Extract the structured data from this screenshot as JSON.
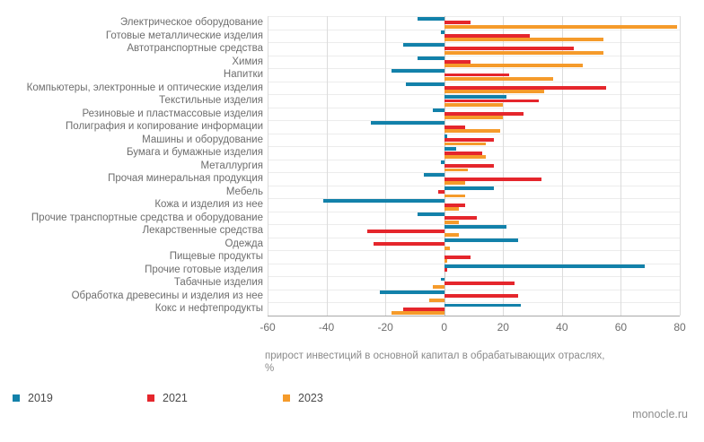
{
  "chart_data": {
    "type": "bar",
    "orientation": "horizontal",
    "title": "",
    "xlabel_line1": "прирост инвестиций в основной капитал в обрабатывающих отраслях,",
    "xlabel_line2": "%",
    "xlim": [
      -60,
      80
    ],
    "xticks": [
      -60,
      -40,
      -20,
      0,
      20,
      40,
      60,
      80
    ],
    "grid": true,
    "legend_position": "bottom",
    "categories": [
      "Электрическое оборудование",
      "Готовые металлические изделия",
      "Автотранспортные средства",
      "Химия",
      "Напитки",
      "Компьютеры, электронные и оптические изделия",
      "Текстильные изделия",
      "Резиновые и пластмассовые изделия",
      "Полиграфия и копирование информации",
      "Машины и оборудование",
      "Бумага и бумажные изделия",
      "Металлургия",
      "Прочая минеральная продукция",
      "Мебель",
      "Кожа и изделия из нее",
      "Прочие транспортные средства и оборудование",
      "Лекарственные средства",
      "Одежда",
      "Пищевые продукты",
      "Прочие готовые изделия",
      "Табачные изделия",
      "Обработка древесины и изделия из нее",
      "Кокс и нефтепродукты"
    ],
    "series": [
      {
        "name": "2019",
        "color": "#1281aa",
        "values": [
          -9,
          -1,
          -14,
          -9,
          -18,
          -13,
          21,
          -4,
          -25,
          1,
          4,
          -1,
          -7,
          17,
          -41,
          -9,
          21,
          25,
          0,
          68,
          -1,
          -22,
          26
        ]
      },
      {
        "name": "2021",
        "color": "#e5262c",
        "values": [
          9,
          29,
          44,
          9,
          22,
          55,
          32,
          27,
          7,
          17,
          13,
          17,
          33,
          -2,
          7,
          11,
          -26,
          -24,
          9,
          1,
          24,
          25,
          -14
        ]
      },
      {
        "name": "2023",
        "color": "#f59b2b",
        "values": [
          79,
          54,
          54,
          47,
          37,
          34,
          20,
          20,
          19,
          14,
          14,
          8,
          7,
          7,
          5,
          5,
          5,
          2,
          1,
          0,
          -4,
          -5,
          -18
        ]
      }
    ]
  },
  "footer": {
    "source_label": "monocle.ru"
  }
}
